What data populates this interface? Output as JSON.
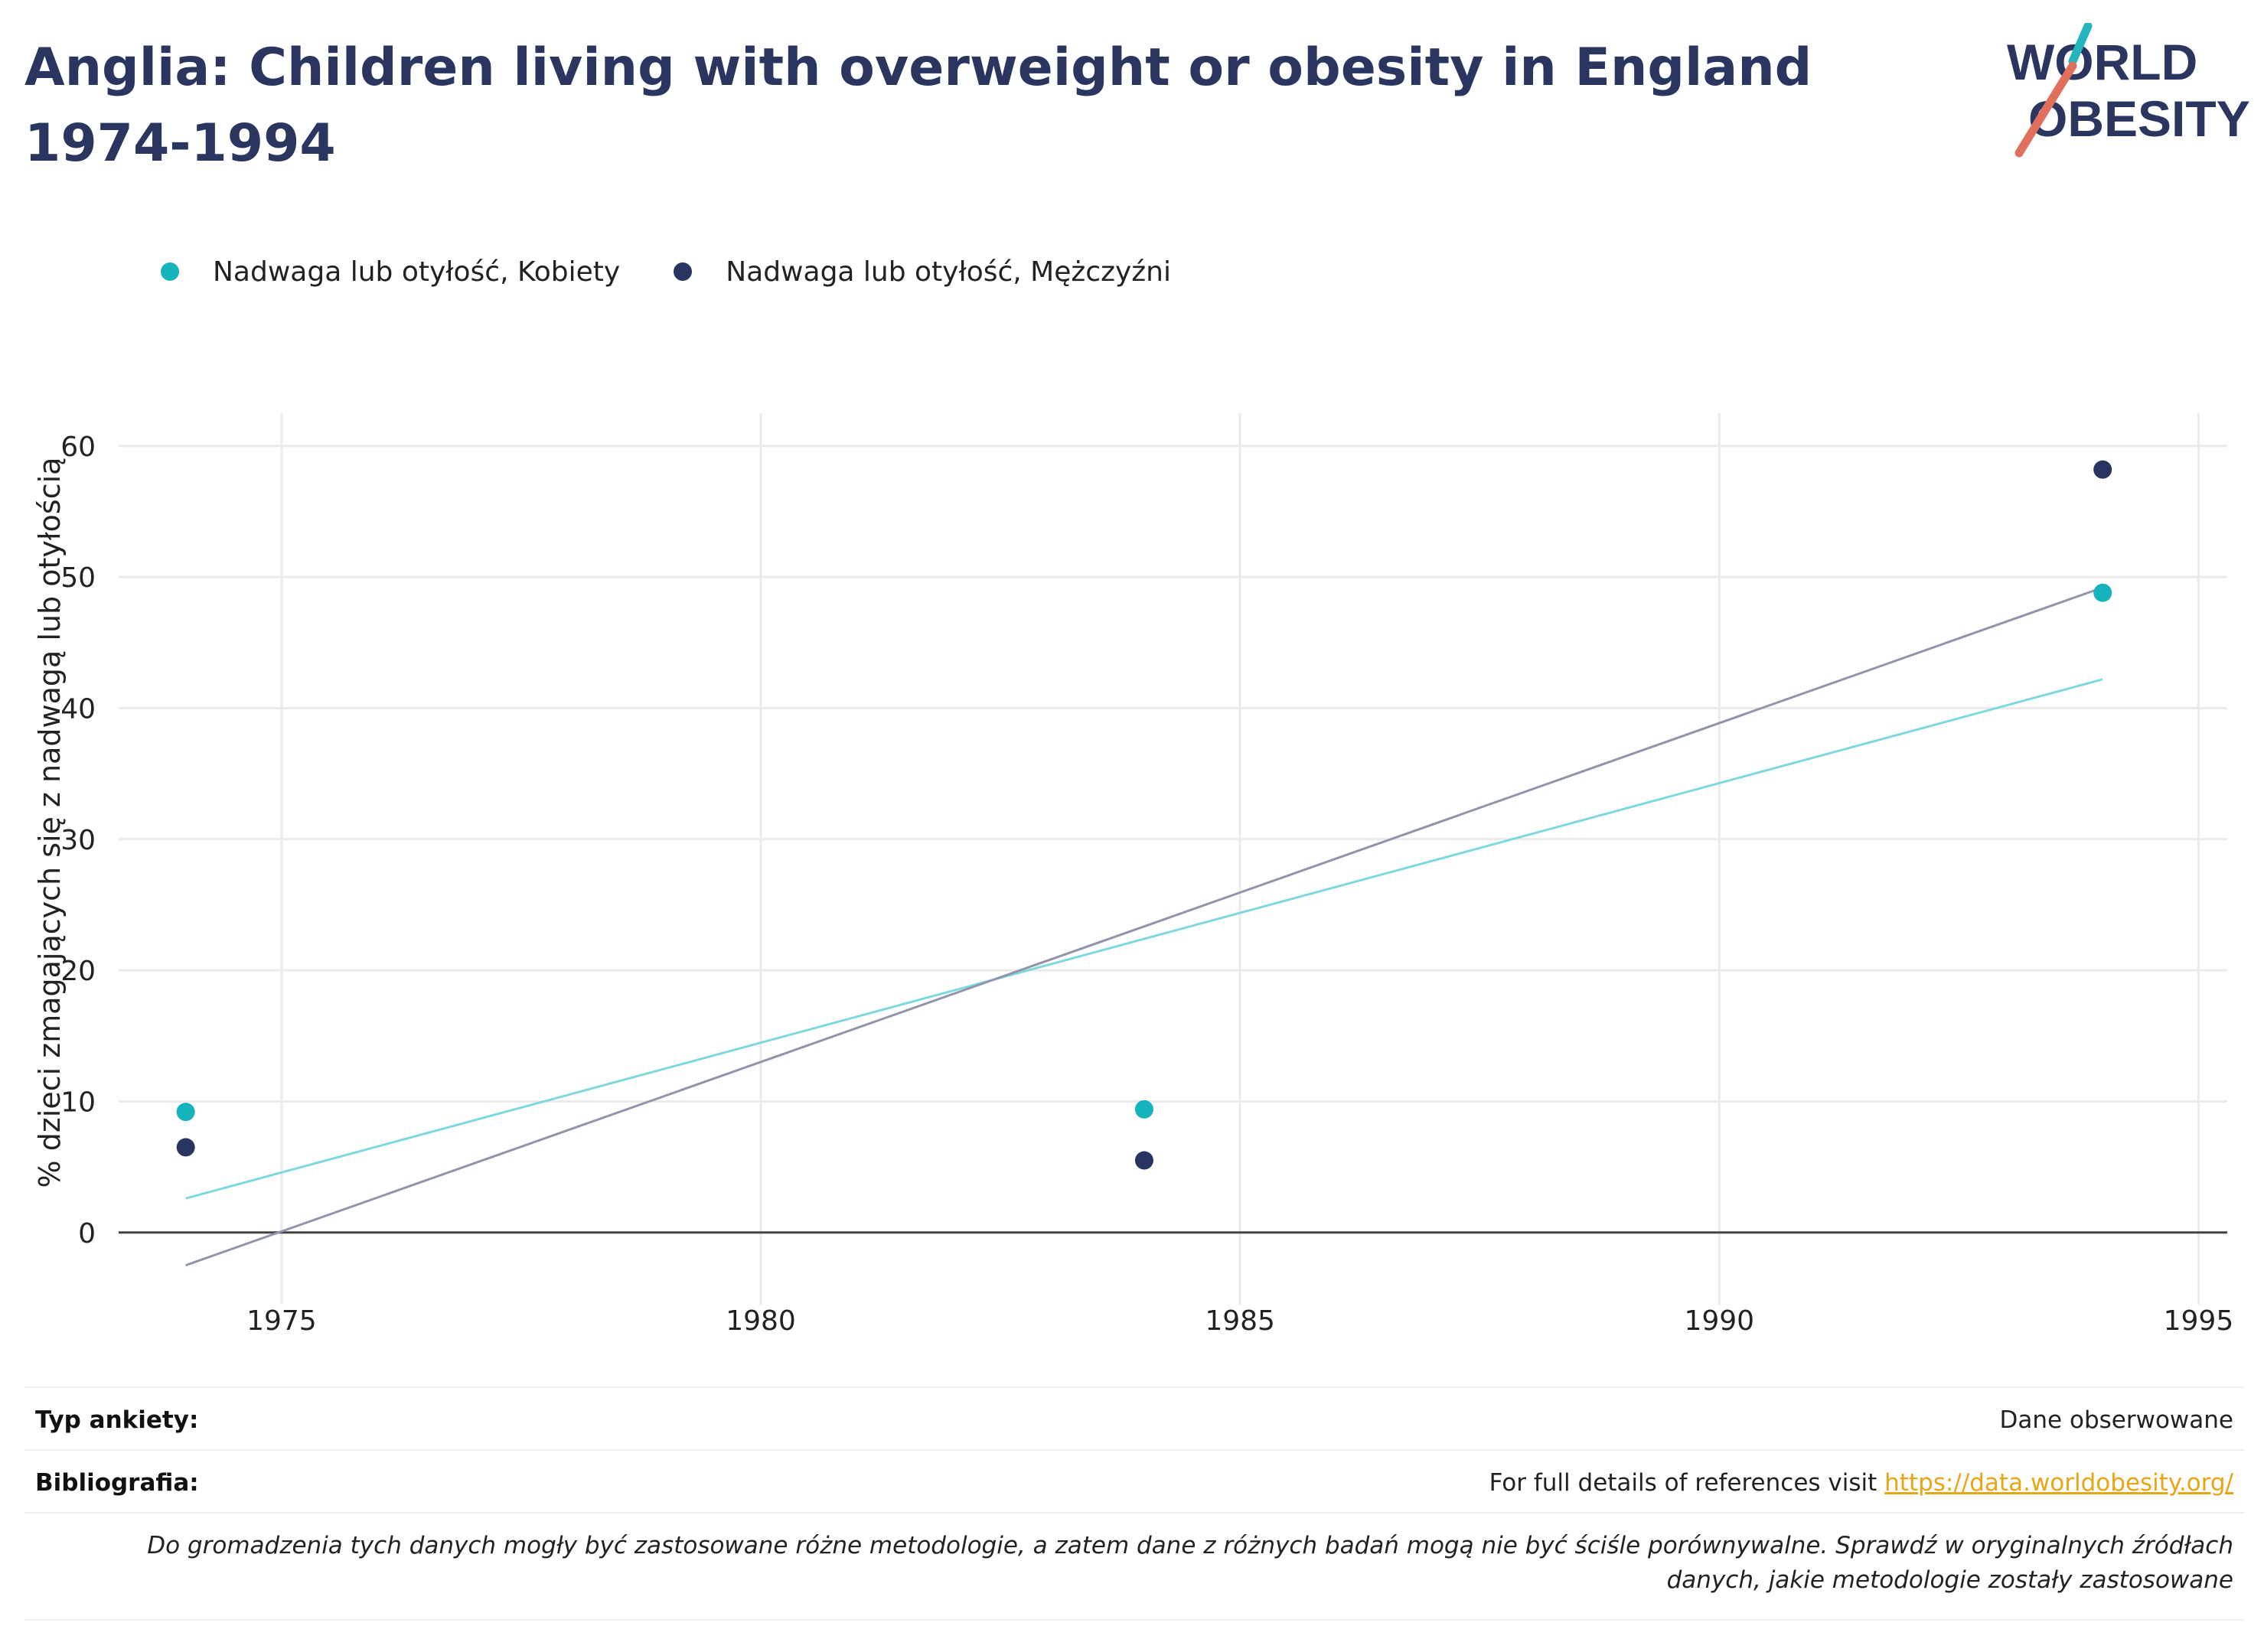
{
  "title": "Anglia: Children living with overweight or obesity in England 1974-1994",
  "logo": {
    "line1": "WORLD",
    "line2": "OBESITY",
    "accent_teal": "#26b5bd",
    "accent_coral": "#e0705b",
    "text_color": "#2a3560"
  },
  "legend": [
    {
      "label": "Nadwaga lub otyłość, Kobiety",
      "color": "#17b3bd"
    },
    {
      "label": "Nadwaga lub otyłość, Mężczyźni",
      "color": "#283560"
    }
  ],
  "chart_data": {
    "type": "scatter",
    "title": "Anglia: Children living with overweight or obesity in England 1974-1994",
    "ylabel": "% dzieci zmagających się z nadwagą lub otyłością",
    "xlabel": "",
    "xlim": [
      1973.3,
      1995.3
    ],
    "ylim": [
      -5.5,
      62.5
    ],
    "x_ticks": [
      1975,
      1980,
      1985,
      1990,
      1995
    ],
    "y_ticks": [
      0,
      10,
      20,
      30,
      40,
      50,
      60
    ],
    "grid": true,
    "legend_position": "top-left",
    "series": [
      {
        "name": "Nadwaga lub otyłość, Kobiety",
        "color": "#17b3bd",
        "points": [
          {
            "x": 1974,
            "y": 9.2
          },
          {
            "x": 1984,
            "y": 9.4
          },
          {
            "x": 1994,
            "y": 48.8
          }
        ],
        "trend": {
          "x": [
            1974,
            1994
          ],
          "y": [
            2.6,
            42.2
          ],
          "color": "#7fd8dc"
        }
      },
      {
        "name": "Nadwaga lub otyłość, Mężczyźni",
        "color": "#283560",
        "points": [
          {
            "x": 1974,
            "y": 6.5
          },
          {
            "x": 1984,
            "y": 5.5
          },
          {
            "x": 1994,
            "y": 58.2
          }
        ],
        "trend": {
          "x": [
            1974,
            1994
          ],
          "y": [
            -2.5,
            49.2
          ],
          "color": "#9095ab"
        }
      }
    ]
  },
  "footer": {
    "survey_type_label": "Typ ankiety:",
    "survey_type_value": "Dane obserwowane",
    "bibliography_label": "Bibliografia:",
    "bibliography_text": "For full details of references visit ",
    "bibliography_link": "https://data.worldobesity.org/",
    "disclaimer": "Do gromadzenia tych danych mogły być zastosowane różne metodologie, a zatem dane z różnych badań mogą nie być ściśle porównywalne. Sprawdź w oryginalnych źródłach danych, jakie metodologie zostały zastosowane"
  }
}
